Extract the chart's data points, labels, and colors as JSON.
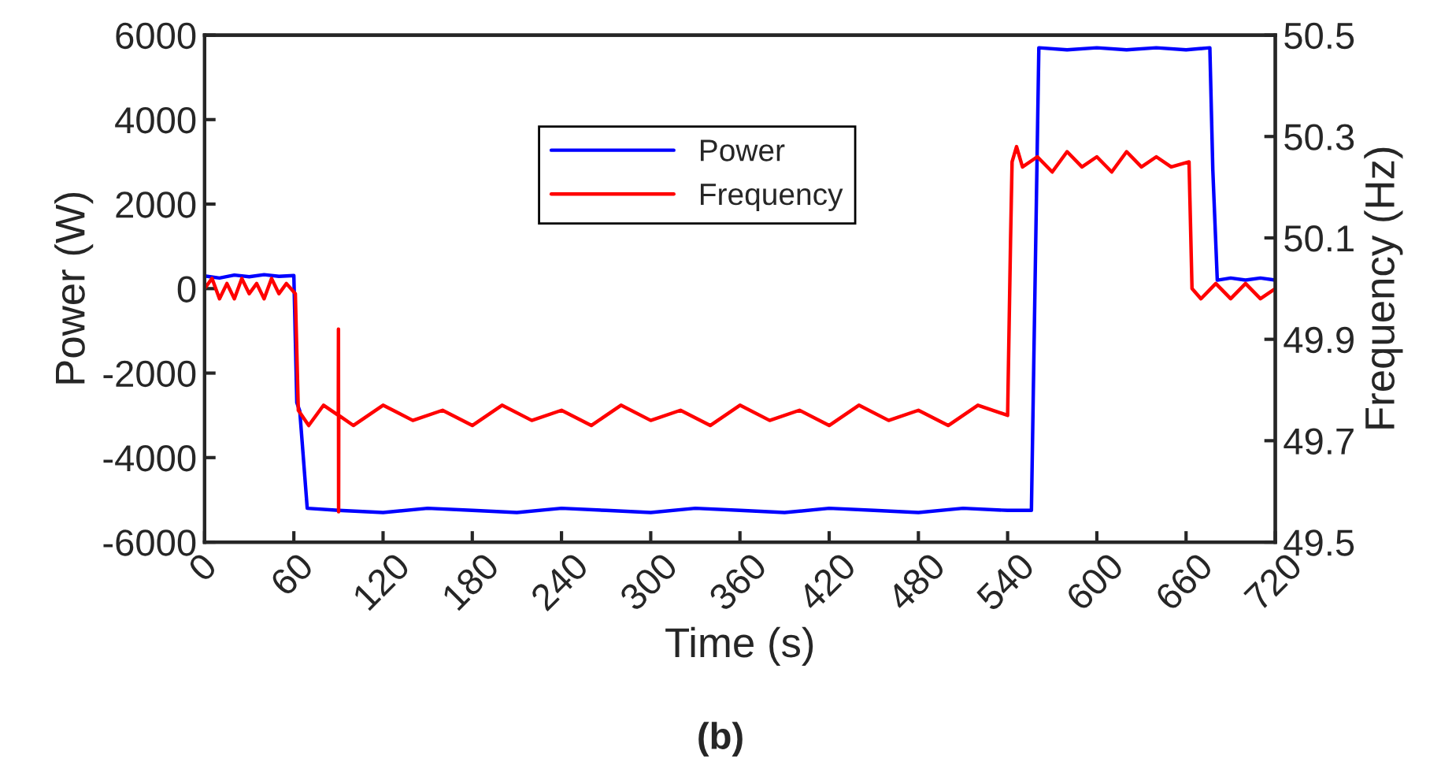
{
  "chart_data": {
    "type": "line",
    "xlabel": "Time (s)",
    "ylabel": "Power (W)",
    "y2label": "Frequency (Hz)",
    "xlim": [
      0,
      720
    ],
    "xticks": [
      0,
      60,
      120,
      180,
      240,
      300,
      360,
      420,
      480,
      540,
      600,
      660,
      720
    ],
    "ylim": [
      -6000,
      6000
    ],
    "yticks": [
      -6000,
      -4000,
      -2000,
      0,
      2000,
      4000,
      6000
    ],
    "y2lim": [
      49.5,
      50.5
    ],
    "y2ticks": [
      49.5,
      49.7,
      49.9,
      50.1,
      50.3,
      50.5
    ],
    "grid": false,
    "legend": "top center",
    "line_style": "solid",
    "marker": "none",
    "annotations": [
      "(b)"
    ],
    "series": [
      {
        "name": "Power",
        "color": "#0000ff",
        "x": [
          0,
          10,
          20,
          30,
          40,
          50,
          60,
          62,
          64,
          69,
          90,
          120,
          150,
          180,
          210,
          240,
          270,
          300,
          330,
          360,
          390,
          420,
          450,
          480,
          510,
          540,
          556,
          561,
          580,
          600,
          620,
          640,
          660,
          676,
          678,
          681,
          690,
          700,
          710,
          720
        ],
        "values": [
          300,
          250,
          320,
          280,
          330,
          290,
          310,
          -2700,
          -2900,
          -5200,
          -5250,
          -5300,
          -5200,
          -5250,
          -5300,
          -5200,
          -5250,
          -5300,
          -5200,
          -5250,
          -5300,
          -5200,
          -5250,
          -5300,
          -5200,
          -5250,
          -5250,
          5700,
          5650,
          5700,
          5650,
          5700,
          5650,
          5700,
          2800,
          200,
          250,
          200,
          250,
          200
        ]
      },
      {
        "name": "Frequency",
        "color": "#ff0000",
        "axis": "y2",
        "x": [
          0,
          5,
          10,
          15,
          20,
          25,
          30,
          35,
          40,
          45,
          50,
          55,
          61,
          63,
          70,
          80,
          89.9,
          90,
          90.1,
          90.2,
          100,
          120,
          140,
          160,
          180,
          200,
          220,
          240,
          260,
          280,
          300,
          320,
          340,
          360,
          380,
          400,
          420,
          440,
          460,
          480,
          500,
          520,
          540,
          542,
          543,
          546,
          550,
          560,
          570,
          580,
          590,
          600,
          610,
          620,
          630,
          640,
          650,
          662,
          664,
          670,
          680,
          690,
          700,
          710,
          720
        ],
        "values": [
          50.0,
          50.02,
          49.98,
          50.01,
          49.98,
          50.02,
          49.99,
          50.01,
          49.98,
          50.02,
          49.99,
          50.01,
          49.99,
          49.76,
          49.73,
          49.77,
          49.75,
          49.92,
          49.56,
          49.75,
          49.73,
          49.77,
          49.74,
          49.76,
          49.73,
          49.77,
          49.74,
          49.76,
          49.73,
          49.77,
          49.74,
          49.76,
          49.73,
          49.77,
          49.74,
          49.76,
          49.73,
          49.77,
          49.74,
          49.76,
          49.73,
          49.77,
          49.75,
          50.1,
          50.25,
          50.28,
          50.24,
          50.26,
          50.23,
          50.27,
          50.24,
          50.26,
          50.23,
          50.27,
          50.24,
          50.26,
          50.24,
          50.25,
          50.0,
          49.98,
          50.01,
          49.98,
          50.01,
          49.98,
          50.0
        ]
      }
    ]
  }
}
